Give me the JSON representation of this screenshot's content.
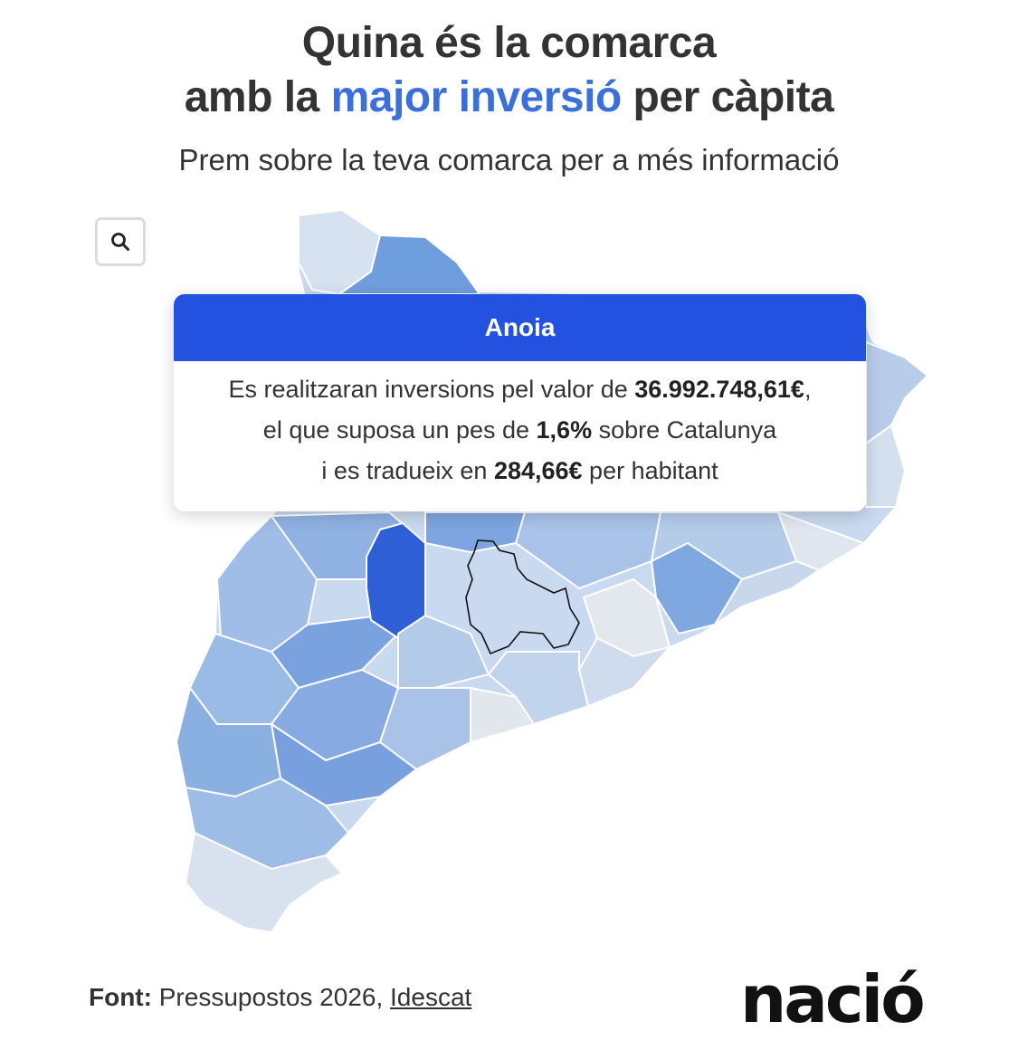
{
  "header": {
    "title_line1": "Quina és la comarca",
    "title_line2_pre": "amb la ",
    "title_line2_highlight": "major inversió",
    "title_line2_post": " per càpita",
    "subtitle": "Prem sobre la teva comarca per a més informació"
  },
  "search": {
    "icon": "search-icon"
  },
  "tooltip": {
    "region": "Anoia",
    "line1_pre": "Es realitzaran inversions pel valor de ",
    "investment": "36.992.748,61€",
    "line1_post": ",",
    "line2_pre": "el que suposa un pes de ",
    "share": "1,6%",
    "line2_post": " sobre Catalunya",
    "line3_pre": "i es tradueix en ",
    "per_capita": "284,66€",
    "line3_post": " per habitant"
  },
  "footer": {
    "source_label": "Font:",
    "source_text": " Pressupostos 2026, ",
    "source_link": "Idescat",
    "logo": "nació"
  },
  "colors": {
    "highlight": "#3a6fdc",
    "tooltip_header": "#2351e0",
    "scale_lightest": "#e3e8f0",
    "scale_darkest": "#2f5fd6"
  }
}
